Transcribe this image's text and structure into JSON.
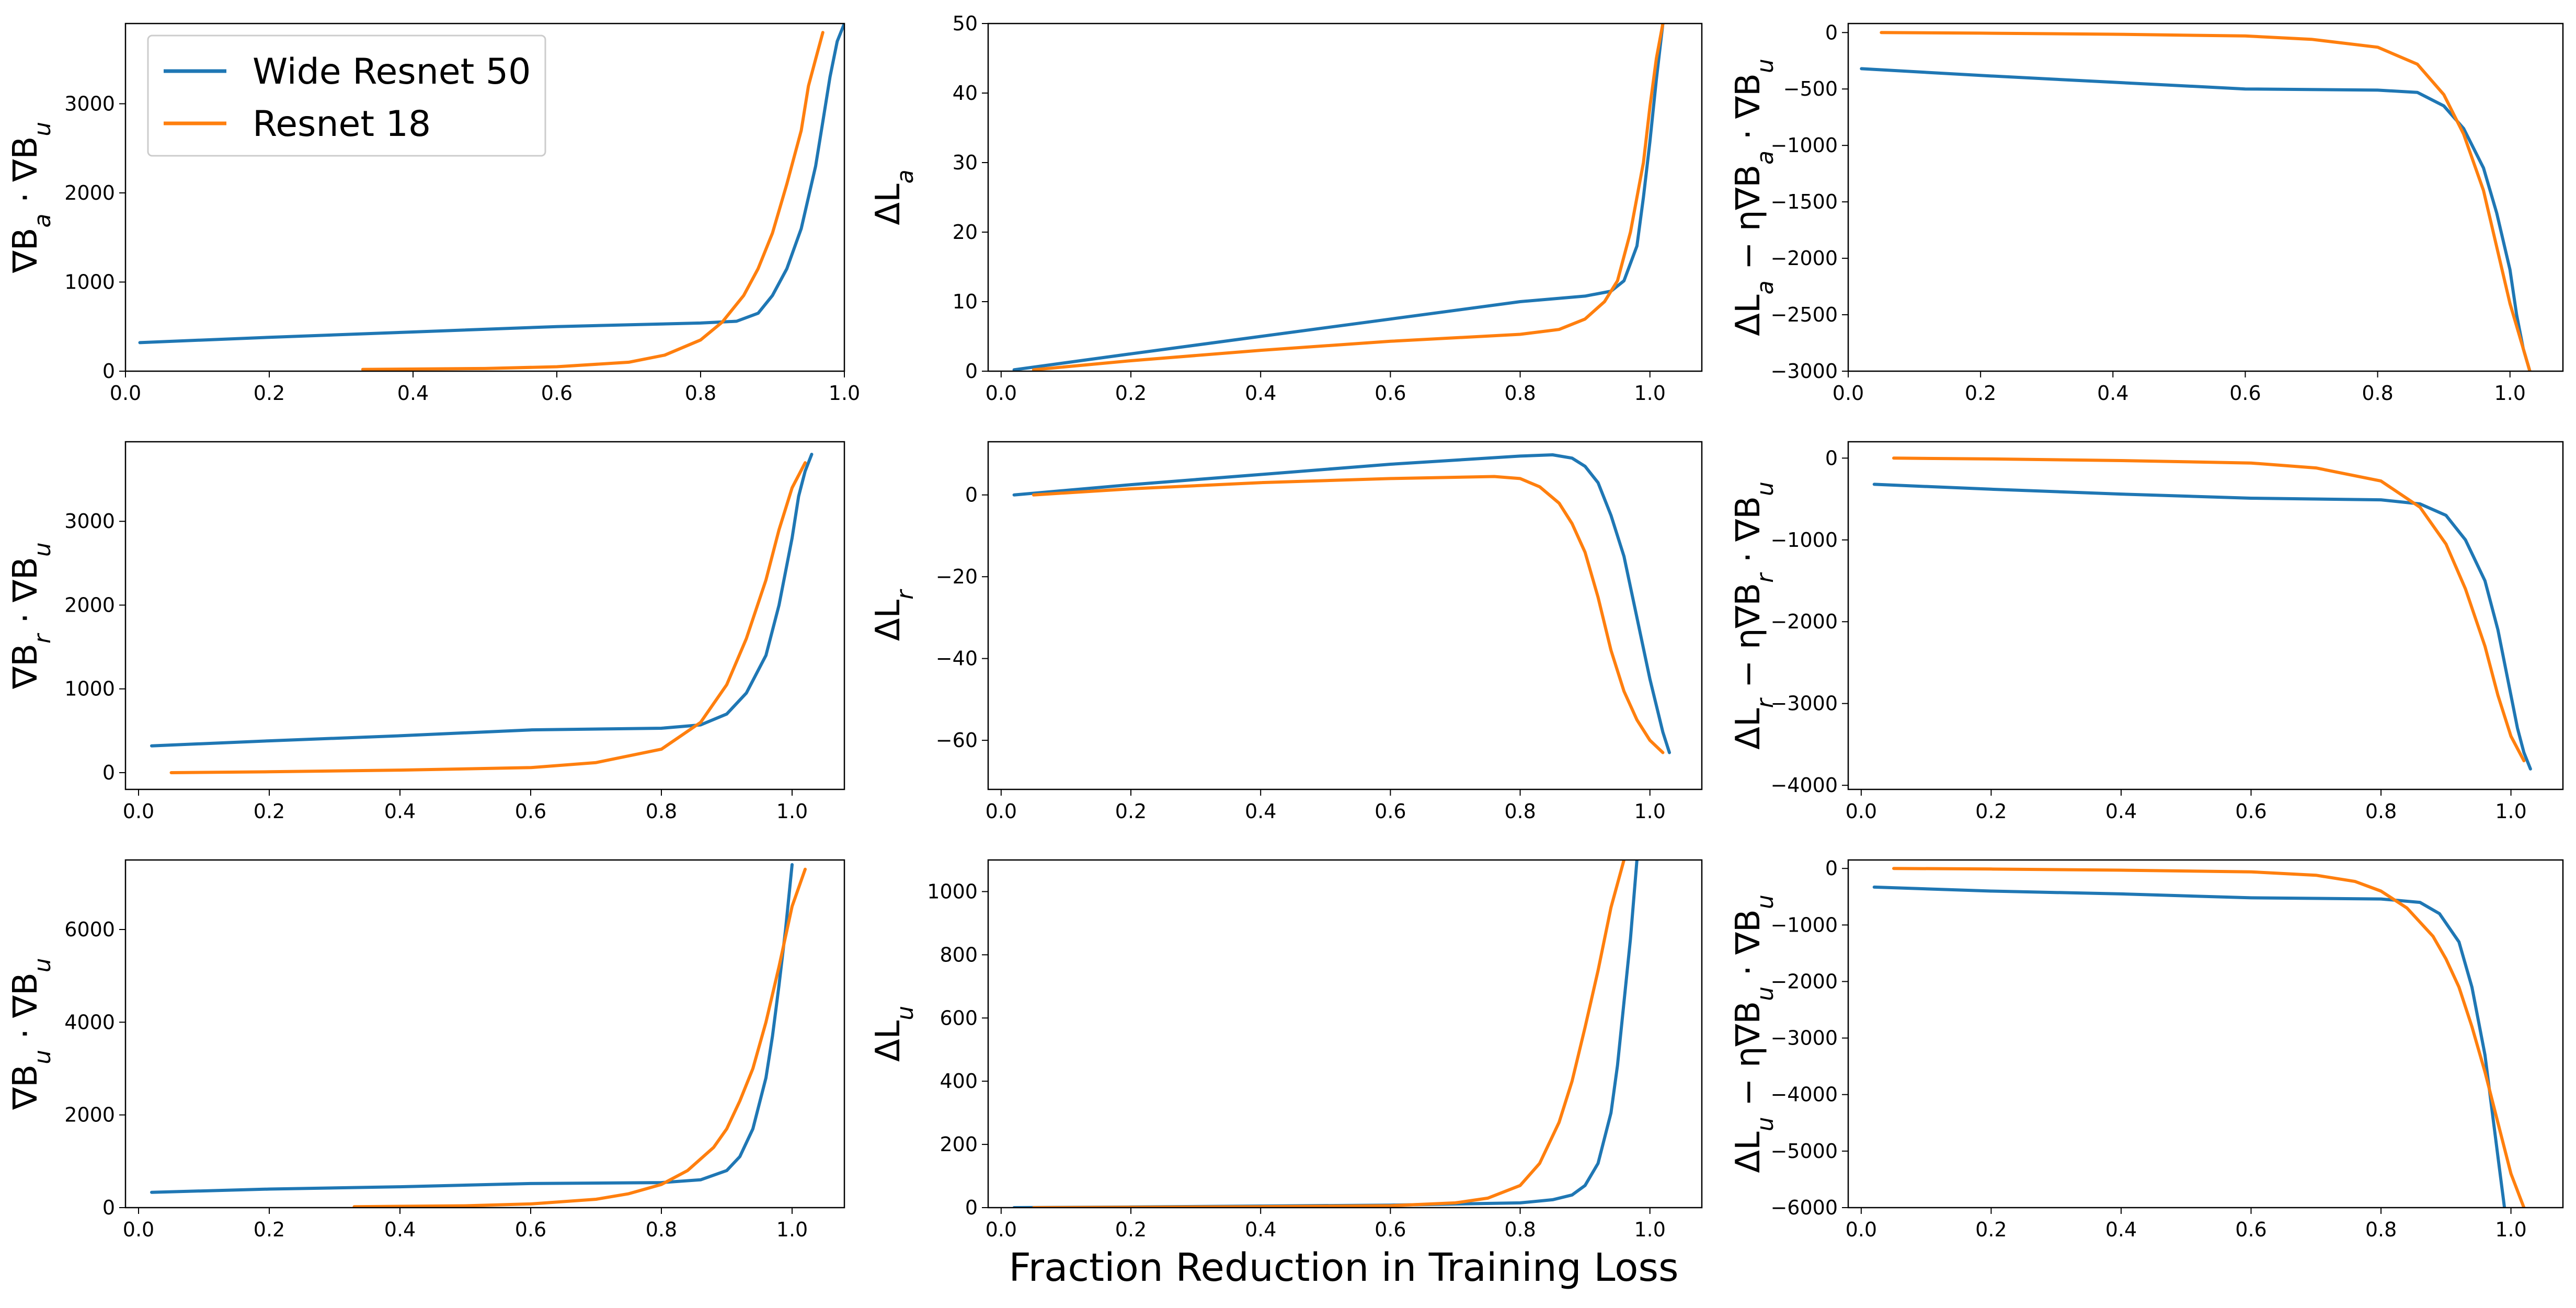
{
  "figure": {
    "xlabel": "Fraction Reduction in Training Loss",
    "legend": {
      "placement": "upper-left of top-left panel",
      "entries": [
        {
          "name": "Wide Resnet 50",
          "color": "#1f77b4"
        },
        {
          "name": "Resnet 18",
          "color": "#ff7f0e"
        }
      ]
    }
  },
  "chart_data": [
    {
      "type": "line",
      "ylabel": "∇B_a · ∇B_u",
      "xlim": [
        0,
        1.0
      ],
      "ylim": [
        0,
        3900
      ],
      "xticks": [
        "0.0",
        "0.2",
        "0.4",
        "0.6",
        "0.8",
        "1.0"
      ],
      "yticks": [
        "0",
        "1000",
        "2000",
        "3000"
      ],
      "series": [
        {
          "name": "Wide Resnet 50",
          "color": "#1f77b4",
          "x": [
            0.02,
            0.2,
            0.4,
            0.6,
            0.8,
            0.85,
            0.88,
            0.9,
            0.92,
            0.94,
            0.96,
            0.97,
            0.98,
            0.99,
            1.0
          ],
          "y": [
            320,
            380,
            440,
            500,
            540,
            560,
            650,
            850,
            1150,
            1600,
            2300,
            2800,
            3300,
            3700,
            3900
          ]
        },
        {
          "name": "Resnet 18",
          "color": "#ff7f0e",
          "x": [
            0.33,
            0.5,
            0.6,
            0.7,
            0.75,
            0.8,
            0.83,
            0.86,
            0.88,
            0.9,
            0.92,
            0.94,
            0.95,
            0.96,
            0.97
          ],
          "y": [
            20,
            30,
            50,
            100,
            180,
            350,
            550,
            850,
            1150,
            1550,
            2100,
            2700,
            3200,
            3500,
            3800
          ]
        }
      ]
    },
    {
      "type": "line",
      "ylabel": "ΔL_a",
      "xlim": [
        -0.02,
        1.08
      ],
      "ylim": [
        0,
        50
      ],
      "xticks": [
        "0.0",
        "0.2",
        "0.4",
        "0.6",
        "0.8",
        "1.0"
      ],
      "yticks": [
        "0",
        "10",
        "20",
        "30",
        "40",
        "50"
      ],
      "series": [
        {
          "name": "Wide Resnet 50",
          "color": "#1f77b4",
          "x": [
            0.02,
            0.2,
            0.4,
            0.6,
            0.8,
            0.9,
            0.94,
            0.96,
            0.98,
            0.99,
            1.0,
            1.01,
            1.02
          ],
          "y": [
            0.2,
            2.5,
            5,
            7.5,
            10,
            10.8,
            11.5,
            13,
            18,
            25,
            33,
            42,
            50
          ]
        },
        {
          "name": "Resnet 18",
          "color": "#ff7f0e",
          "x": [
            0.05,
            0.2,
            0.4,
            0.6,
            0.8,
            0.86,
            0.9,
            0.93,
            0.95,
            0.97,
            0.99,
            1.0,
            1.01,
            1.02
          ],
          "y": [
            0.2,
            1.5,
            3,
            4.3,
            5.3,
            6,
            7.5,
            10,
            13,
            20,
            30,
            38,
            45,
            50
          ]
        }
      ]
    },
    {
      "type": "line",
      "ylabel": "ΔL_a − η∇B_a · ∇B_u",
      "xlim": [
        0,
        1.08
      ],
      "ylim": [
        -3000,
        80
      ],
      "xticks": [
        "0.0",
        "0.2",
        "0.4",
        "0.6",
        "0.8",
        "1.0"
      ],
      "yticks": [
        "0",
        "-500",
        "-1000",
        "-1500",
        "-2000",
        "-2500",
        "-3000"
      ],
      "series": [
        {
          "name": "Wide Resnet 50",
          "color": "#1f77b4",
          "x": [
            0.02,
            0.2,
            0.4,
            0.6,
            0.8,
            0.86,
            0.9,
            0.93,
            0.96,
            0.98,
            1.0,
            1.01,
            1.02,
            1.03
          ],
          "y": [
            -320,
            -380,
            -440,
            -500,
            -510,
            -530,
            -650,
            -850,
            -1200,
            -1600,
            -2100,
            -2500,
            -2800,
            -3000
          ]
        },
        {
          "name": "Resnet 18",
          "color": "#ff7f0e",
          "x": [
            0.05,
            0.2,
            0.4,
            0.6,
            0.7,
            0.8,
            0.86,
            0.9,
            0.93,
            0.96,
            0.98,
            1.0,
            1.02,
            1.03
          ],
          "y": [
            0,
            -5,
            -15,
            -30,
            -60,
            -130,
            -280,
            -550,
            -900,
            -1400,
            -1900,
            -2400,
            -2800,
            -3000
          ]
        }
      ]
    },
    {
      "type": "line",
      "ylabel": "∇B_r · ∇B_u",
      "xlim": [
        -0.02,
        1.08
      ],
      "ylim": [
        -200,
        3950
      ],
      "xticks": [
        "0.0",
        "0.2",
        "0.4",
        "0.6",
        "0.8",
        "1.0"
      ],
      "yticks": [
        "0",
        "1000",
        "2000",
        "3000"
      ],
      "series": [
        {
          "name": "Wide Resnet 50",
          "color": "#1f77b4",
          "x": [
            0.02,
            0.2,
            0.4,
            0.6,
            0.8,
            0.86,
            0.9,
            0.93,
            0.96,
            0.98,
            1.0,
            1.01,
            1.02,
            1.03
          ],
          "y": [
            320,
            380,
            440,
            510,
            530,
            570,
            700,
            950,
            1400,
            2000,
            2800,
            3300,
            3600,
            3800
          ]
        },
        {
          "name": "Resnet 18",
          "color": "#ff7f0e",
          "x": [
            0.05,
            0.2,
            0.4,
            0.6,
            0.7,
            0.8,
            0.86,
            0.9,
            0.93,
            0.96,
            0.98,
            1.0,
            1.02
          ],
          "y": [
            0,
            10,
            30,
            60,
            120,
            280,
            600,
            1050,
            1600,
            2300,
            2900,
            3400,
            3700
          ]
        }
      ]
    },
    {
      "type": "line",
      "ylabel": "ΔL_r",
      "xlim": [
        -0.02,
        1.08
      ],
      "ylim": [
        -72,
        13
      ],
      "xticks": [
        "0.0",
        "0.2",
        "0.4",
        "0.6",
        "0.8",
        "1.0"
      ],
      "yticks": [
        "0",
        "-20",
        "-40",
        "-60"
      ],
      "series": [
        {
          "name": "Wide Resnet 50",
          "color": "#1f77b4",
          "x": [
            0.02,
            0.2,
            0.4,
            0.6,
            0.8,
            0.85,
            0.88,
            0.9,
            0.92,
            0.94,
            0.96,
            0.98,
            1.0,
            1.02,
            1.03
          ],
          "y": [
            0,
            2.5,
            5,
            7.5,
            9.5,
            9.8,
            9,
            7,
            3,
            -5,
            -15,
            -30,
            -45,
            -58,
            -63
          ]
        },
        {
          "name": "Resnet 18",
          "color": "#ff7f0e",
          "x": [
            0.05,
            0.2,
            0.4,
            0.6,
            0.76,
            0.8,
            0.83,
            0.86,
            0.88,
            0.9,
            0.92,
            0.94,
            0.96,
            0.98,
            1.0,
            1.02
          ],
          "y": [
            0,
            1.5,
            3,
            4,
            4.5,
            4,
            2,
            -2,
            -7,
            -14,
            -25,
            -38,
            -48,
            -55,
            -60,
            -63
          ]
        }
      ]
    },
    {
      "type": "line",
      "ylabel": "ΔL_r − η∇B_r · ∇B_u",
      "xlim": [
        -0.02,
        1.08
      ],
      "ylim": [
        -4050,
        200
      ],
      "xticks": [
        "0.0",
        "0.2",
        "0.4",
        "0.6",
        "0.8",
        "1.0"
      ],
      "yticks": [
        "0",
        "-1000",
        "-2000",
        "-3000",
        "-4000"
      ],
      "series": [
        {
          "name": "Wide Resnet 50",
          "color": "#1f77b4",
          "x": [
            0.02,
            0.2,
            0.4,
            0.6,
            0.8,
            0.86,
            0.9,
            0.93,
            0.96,
            0.98,
            1.0,
            1.01,
            1.02,
            1.03
          ],
          "y": [
            -320,
            -380,
            -440,
            -490,
            -510,
            -560,
            -700,
            -1000,
            -1500,
            -2100,
            -2900,
            -3300,
            -3600,
            -3800
          ]
        },
        {
          "name": "Resnet 18",
          "color": "#ff7f0e",
          "x": [
            0.05,
            0.2,
            0.4,
            0.6,
            0.7,
            0.8,
            0.86,
            0.9,
            0.93,
            0.96,
            0.98,
            1.0,
            1.02
          ],
          "y": [
            0,
            -10,
            -30,
            -60,
            -120,
            -280,
            -600,
            -1050,
            -1600,
            -2300,
            -2900,
            -3400,
            -3700
          ]
        }
      ]
    },
    {
      "type": "line",
      "ylabel": "∇B_u · ∇B_u",
      "xlim": [
        -0.02,
        1.08
      ],
      "ylim": [
        0,
        7500
      ],
      "xticks": [
        "0.0",
        "0.2",
        "0.4",
        "0.6",
        "0.8",
        "1.0"
      ],
      "yticks": [
        "0",
        "2000",
        "4000",
        "6000"
      ],
      "series": [
        {
          "name": "Wide Resnet 50",
          "color": "#1f77b4",
          "x": [
            0.02,
            0.2,
            0.4,
            0.6,
            0.8,
            0.86,
            0.9,
            0.92,
            0.94,
            0.96,
            0.97,
            0.98,
            0.99,
            1.0
          ],
          "y": [
            330,
            400,
            450,
            520,
            540,
            600,
            800,
            1100,
            1700,
            2800,
            3700,
            4800,
            6000,
            7400
          ]
        },
        {
          "name": "Resnet 18",
          "color": "#ff7f0e",
          "x": [
            0.33,
            0.5,
            0.6,
            0.7,
            0.75,
            0.8,
            0.84,
            0.88,
            0.9,
            0.92,
            0.94,
            0.96,
            0.98,
            1.0,
            1.02
          ],
          "y": [
            20,
            40,
            80,
            180,
            300,
            500,
            800,
            1300,
            1700,
            2300,
            3000,
            4000,
            5200,
            6500,
            7300
          ]
        }
      ]
    },
    {
      "type": "line",
      "ylabel": "ΔL_u",
      "xlim": [
        -0.02,
        1.08
      ],
      "ylim": [
        0,
        1100
      ],
      "xticks": [
        "0.0",
        "0.2",
        "0.4",
        "0.6",
        "0.8",
        "1.0"
      ],
      "yticks": [
        "0",
        "200",
        "400",
        "600",
        "800",
        "1000"
      ],
      "series": [
        {
          "name": "Wide Resnet 50",
          "color": "#1f77b4",
          "x": [
            0.02,
            0.2,
            0.4,
            0.6,
            0.8,
            0.85,
            0.88,
            0.9,
            0.92,
            0.94,
            0.95,
            0.96,
            0.97,
            0.98
          ],
          "y": [
            0,
            2,
            5,
            8,
            15,
            25,
            40,
            70,
            140,
            300,
            450,
            650,
            850,
            1100
          ]
        },
        {
          "name": "Resnet 18",
          "color": "#ff7f0e",
          "x": [
            0.05,
            0.2,
            0.4,
            0.6,
            0.7,
            0.75,
            0.8,
            0.83,
            0.86,
            0.88,
            0.9,
            0.92,
            0.94,
            0.96
          ],
          "y": [
            0,
            1,
            3,
            6,
            15,
            30,
            70,
            140,
            270,
            400,
            570,
            750,
            950,
            1100
          ]
        }
      ]
    },
    {
      "type": "line",
      "ylabel": "ΔL_u − η∇B_u · ∇B_u",
      "xlim": [
        -0.02,
        1.08
      ],
      "ylim": [
        -6000,
        150
      ],
      "xticks": [
        "0.0",
        "0.2",
        "0.4",
        "0.6",
        "0.8",
        "1.0"
      ],
      "yticks": [
        "0",
        "-1000",
        "-2000",
        "-3000",
        "-4000",
        "-5000",
        "-6000"
      ],
      "series": [
        {
          "name": "Wide Resnet 50",
          "color": "#1f77b4",
          "x": [
            0.02,
            0.2,
            0.4,
            0.6,
            0.8,
            0.86,
            0.89,
            0.92,
            0.94,
            0.96,
            0.97,
            0.98,
            0.99
          ],
          "y": [
            -330,
            -400,
            -450,
            -520,
            -540,
            -600,
            -800,
            -1300,
            -2100,
            -3300,
            -4200,
            -5100,
            -6000
          ]
        },
        {
          "name": "Resnet 18",
          "color": "#ff7f0e",
          "x": [
            0.05,
            0.2,
            0.4,
            0.6,
            0.7,
            0.76,
            0.8,
            0.84,
            0.88,
            0.9,
            0.92,
            0.94,
            0.96,
            0.98,
            1.0,
            1.02
          ],
          "y": [
            0,
            -10,
            -30,
            -60,
            -120,
            -230,
            -400,
            -700,
            -1200,
            -1600,
            -2100,
            -2800,
            -3600,
            -4500,
            -5400,
            -6000
          ]
        }
      ]
    }
  ]
}
